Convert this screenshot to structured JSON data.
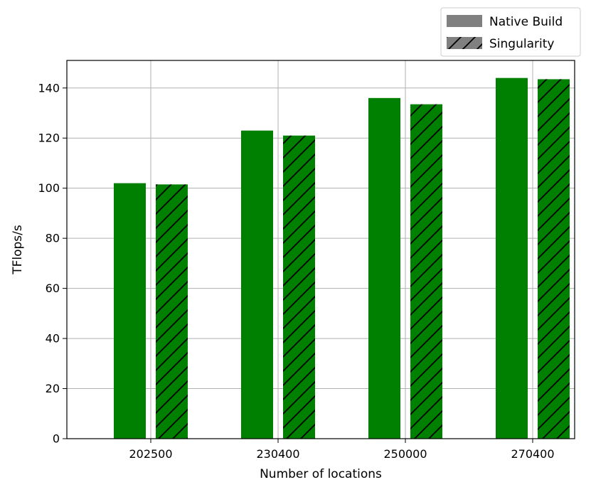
{
  "chart_data": {
    "type": "bar",
    "categories": [
      "202500",
      "230400",
      "250000",
      "270400"
    ],
    "series": [
      {
        "name": "Native Build",
        "values": [
          102,
          123,
          136,
          144
        ],
        "color": "#008000",
        "hatch": "none"
      },
      {
        "name": "Singularity",
        "values": [
          101.5,
          121,
          133.5,
          143.5
        ],
        "color": "#008000",
        "hatch": "diagonal"
      }
    ],
    "xlabel": "Number of locations",
    "ylabel": "TFlops/s",
    "ylim": [
      0,
      151
    ],
    "yticks": [
      "0",
      "20",
      "40",
      "60",
      "80",
      "100",
      "120",
      "140"
    ],
    "grid": true,
    "legend": {
      "position": "top-right-outside",
      "swatch_color": "#808080",
      "entries": [
        "Native Build",
        "Singularity"
      ]
    }
  }
}
